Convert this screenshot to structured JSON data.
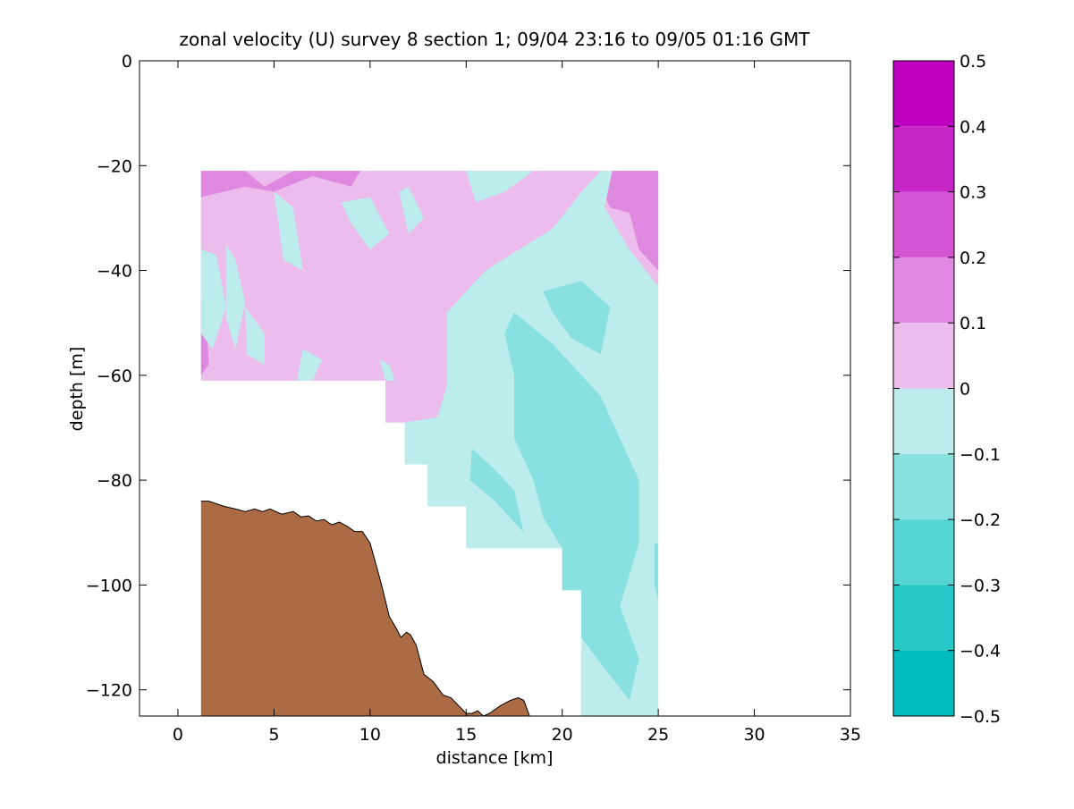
{
  "chart_data": {
    "type": "contour",
    "title": "zonal velocity (U) survey 8 section 1; 09/04 23:16 to 09/05 01:16 GMT",
    "xlabel": "distance [km]",
    "ylabel": "depth [m]",
    "xlim": [
      -2,
      35
    ],
    "ylim": [
      -125,
      0
    ],
    "xticks": [
      0,
      5,
      10,
      15,
      20,
      25,
      30,
      35
    ],
    "yticks": [
      0,
      -20,
      -40,
      -60,
      -80,
      -100,
      -120
    ],
    "grid": false,
    "colorbar": {
      "ticks": [
        0.5,
        0.4,
        0.3,
        0.2,
        0.1,
        0,
        -0.1,
        -0.2,
        -0.3,
        -0.4,
        -0.5
      ],
      "tick_labels": [
        "0.5",
        "0.4",
        "0.3",
        "0.2",
        "0.1",
        "0",
        "−0.1",
        "−0.2",
        "−0.3",
        "−0.4",
        "−0.5"
      ],
      "levels": [
        {
          "range": [
            0.4,
            0.5
          ],
          "color": "#c000c0"
        },
        {
          "range": [
            0.3,
            0.4
          ],
          "color": "#c726c7"
        },
        {
          "range": [
            0.2,
            0.3
          ],
          "color": "#d355d3"
        },
        {
          "range": [
            0.1,
            0.2
          ],
          "color": "#df88df"
        },
        {
          "range": [
            0.0,
            0.1
          ],
          "color": "#ecbcec"
        },
        {
          "range": [
            -0.1,
            0.0
          ],
          "color": "#bdeced"
        },
        {
          "range": [
            -0.2,
            -0.1
          ],
          "color": "#88e0e0"
        },
        {
          "range": [
            -0.3,
            -0.2
          ],
          "color": "#56d5d5"
        },
        {
          "range": [
            -0.4,
            -0.3
          ],
          "color": "#27c8c8"
        },
        {
          "range": [
            -0.5,
            -0.4
          ],
          "color": "#00bdbd"
        }
      ]
    },
    "data_coverage_polygon": [
      [
        1.2,
        -21
      ],
      [
        25,
        -21
      ],
      [
        25,
        -125
      ],
      [
        21,
        -125
      ],
      [
        21,
        -101
      ],
      [
        20,
        -101
      ],
      [
        20,
        -93
      ],
      [
        15,
        -93
      ],
      [
        15,
        -85
      ],
      [
        13,
        -85
      ],
      [
        13,
        -77
      ],
      [
        11.8,
        -77
      ],
      [
        11.8,
        -69
      ],
      [
        10.8,
        -69
      ],
      [
        10.8,
        -61
      ],
      [
        1.2,
        -61
      ]
    ],
    "contour_regions": [
      {
        "value_band": [
          0.0,
          0.1
        ],
        "polygon": [
          [
            1.2,
            -21
          ],
          [
            25,
            -21
          ],
          [
            25,
            -60
          ],
          [
            20,
            -60
          ],
          [
            16,
            -55
          ],
          [
            14,
            -48
          ],
          [
            14,
            -62
          ],
          [
            13.5,
            -68
          ],
          [
            12,
            -69
          ],
          [
            10.8,
            -69
          ],
          [
            10.8,
            -61
          ],
          [
            1.2,
            -61
          ]
        ]
      },
      {
        "value_band": [
          0.1,
          0.2
        ],
        "polygon": [
          [
            1.2,
            -21
          ],
          [
            3.5,
            -21
          ],
          [
            4.5,
            -24
          ],
          [
            6,
            -21
          ],
          [
            9.5,
            -21
          ],
          [
            9,
            -24
          ],
          [
            7,
            -22
          ],
          [
            5,
            -25
          ],
          [
            3.5,
            -24
          ],
          [
            1.2,
            -26
          ]
        ]
      },
      {
        "value_band": [
          0.1,
          0.2
        ],
        "polygon": [
          [
            22.6,
            -21
          ],
          [
            25,
            -21
          ],
          [
            25,
            -40
          ],
          [
            24,
            -36
          ],
          [
            23.5,
            -29
          ],
          [
            22.5,
            -28
          ],
          [
            22,
            -24
          ]
        ]
      },
      {
        "value_band": [
          0.1,
          0.2
        ],
        "polygon": [
          [
            1.2,
            -45
          ],
          [
            1.5,
            -50
          ],
          [
            1.6,
            -58
          ],
          [
            1.2,
            -60
          ]
        ]
      },
      {
        "value_band": [
          0.1,
          0.2
        ],
        "polygon": [
          [
            13.5,
            -77
          ],
          [
            14.3,
            -84
          ],
          [
            14.8,
            -82
          ],
          [
            14,
            -75
          ]
        ]
      },
      {
        "value_band": [
          0.1,
          0.2
        ],
        "polygon": [
          [
            24.8,
            -75
          ],
          [
            25,
            -75
          ],
          [
            25,
            -78
          ],
          [
            24.8,
            -77.5
          ]
        ]
      },
      {
        "value_band": [
          -0.1,
          0.0
        ],
        "polygon": [
          [
            15,
            -21
          ],
          [
            18.5,
            -21
          ],
          [
            17,
            -25
          ],
          [
            15.5,
            -27
          ]
        ]
      },
      {
        "value_band": [
          -0.1,
          0.0
        ],
        "polygon": [
          [
            8.5,
            -27
          ],
          [
            10,
            -26
          ],
          [
            11,
            -33
          ],
          [
            10,
            -36
          ],
          [
            9,
            -31
          ]
        ]
      },
      {
        "value_band": [
          -0.1,
          0.0
        ],
        "polygon": [
          [
            11.5,
            -25
          ],
          [
            12,
            -24
          ],
          [
            12.8,
            -30
          ],
          [
            12,
            -33
          ]
        ]
      },
      {
        "value_band": [
          -0.1,
          0.0
        ],
        "polygon": [
          [
            5,
            -25
          ],
          [
            6,
            -28
          ],
          [
            6.5,
            -40
          ],
          [
            5.5,
            -38
          ]
        ]
      },
      {
        "value_band": [
          -0.1,
          0.0
        ],
        "polygon": [
          [
            1.2,
            -36
          ],
          [
            2,
            -37
          ],
          [
            2.5,
            -47
          ],
          [
            1.8,
            -55
          ],
          [
            1.2,
            -52
          ]
        ]
      },
      {
        "value_band": [
          -0.1,
          0.0
        ],
        "polygon": [
          [
            2.5,
            -35
          ],
          [
            3,
            -38
          ],
          [
            3.5,
            -46
          ],
          [
            3,
            -55
          ],
          [
            2.5,
            -49
          ]
        ]
      },
      {
        "value_band": [
          -0.1,
          0.0
        ],
        "polygon": [
          [
            3.5,
            -47
          ],
          [
            4.5,
            -52
          ],
          [
            4.5,
            -58
          ],
          [
            3.6,
            -56
          ]
        ]
      },
      {
        "value_band": [
          -0.1,
          0.0
        ],
        "polygon": [
          [
            6.5,
            -55
          ],
          [
            7.5,
            -57
          ],
          [
            7,
            -61
          ],
          [
            6.2,
            -61
          ]
        ]
      },
      {
        "value_band": [
          -0.1,
          0.0
        ],
        "polygon": [
          [
            10.5,
            -57
          ],
          [
            11,
            -58
          ],
          [
            11.3,
            -61
          ],
          [
            10.8,
            -61
          ]
        ]
      },
      {
        "value_band": [
          -0.1,
          0.0
        ],
        "polygon": [
          [
            16,
            -40
          ],
          [
            19.5,
            -32
          ],
          [
            21,
            -25
          ],
          [
            22,
            -21
          ],
          [
            22.6,
            -21
          ],
          [
            22.2,
            -28
          ],
          [
            23.5,
            -36
          ],
          [
            25,
            -43
          ],
          [
            25,
            -125
          ],
          [
            21,
            -125
          ],
          [
            21,
            -101
          ],
          [
            20,
            -101
          ],
          [
            20,
            -93
          ],
          [
            15,
            -93
          ],
          [
            15,
            -85
          ],
          [
            13,
            -85
          ],
          [
            13,
            -77
          ],
          [
            11.8,
            -77
          ],
          [
            11.8,
            -69
          ],
          [
            13.5,
            -68
          ],
          [
            14,
            -62
          ],
          [
            14,
            -48
          ]
        ]
      },
      {
        "value_band": [
          -0.2,
          -0.1
        ],
        "polygon": [
          [
            19,
            -44
          ],
          [
            21,
            -42
          ],
          [
            22.5,
            -47
          ],
          [
            22,
            -56
          ],
          [
            20.5,
            -53
          ],
          [
            19.5,
            -48
          ]
        ]
      },
      {
        "value_band": [
          -0.2,
          -0.1
        ],
        "polygon": [
          [
            17.5,
            -48
          ],
          [
            19.5,
            -54
          ],
          [
            22,
            -64
          ],
          [
            24,
            -80
          ],
          [
            24,
            -92
          ],
          [
            23,
            -104
          ],
          [
            24,
            -114
          ],
          [
            23.5,
            -122
          ],
          [
            22,
            -115
          ],
          [
            21,
            -110
          ],
          [
            21,
            -101
          ],
          [
            20,
            -101
          ],
          [
            20,
            -93
          ],
          [
            19,
            -87
          ],
          [
            18.5,
            -80
          ],
          [
            17.5,
            -72
          ],
          [
            17.5,
            -60
          ],
          [
            17,
            -52
          ]
        ]
      },
      {
        "value_band": [
          -0.2,
          -0.1
        ],
        "polygon": [
          [
            15.3,
            -74
          ],
          [
            16.5,
            -78
          ],
          [
            17.5,
            -82
          ],
          [
            18,
            -90
          ],
          [
            16.5,
            -84
          ],
          [
            15.2,
            -80
          ]
        ]
      },
      {
        "value_band": [
          -0.2,
          -0.1
        ],
        "polygon": [
          [
            24.8,
            -92
          ],
          [
            25,
            -92
          ],
          [
            25,
            -103
          ],
          [
            24.8,
            -100
          ]
        ]
      }
    ],
    "seabed_profile": {
      "color": "#ab6b44",
      "x": [
        1.2,
        1.6,
        2.0,
        2.4,
        3.0,
        3.5,
        4.0,
        4.4,
        4.8,
        5.4,
        6.0,
        6.4,
        6.8,
        7.2,
        7.6,
        8.0,
        8.4,
        8.8,
        9.2,
        9.6,
        10.0,
        10.3,
        10.6,
        11.0,
        11.4,
        11.6,
        11.9,
        12.1,
        12.4,
        12.8,
        13.3,
        13.8,
        14.2,
        14.6,
        15.0,
        15.3,
        15.6,
        15.9,
        16.2,
        16.8,
        17.3,
        17.7,
        18.0,
        18.2,
        18.3
      ],
      "y": [
        -84,
        -84,
        -84.5,
        -85,
        -85.5,
        -86,
        -85.5,
        -86,
        -85.5,
        -86.5,
        -86,
        -87,
        -86.8,
        -87.8,
        -87.5,
        -88.5,
        -88,
        -88.8,
        -89.8,
        -89.8,
        -92,
        -96,
        -100,
        -106,
        -108.5,
        -110,
        -109,
        -109.5,
        -111.5,
        -117,
        -118.5,
        -121,
        -121.5,
        -123,
        -124.5,
        -124.5,
        -124,
        -125,
        -124.5,
        -123,
        -122,
        -121.5,
        -122,
        -124,
        -125
      ]
    }
  }
}
